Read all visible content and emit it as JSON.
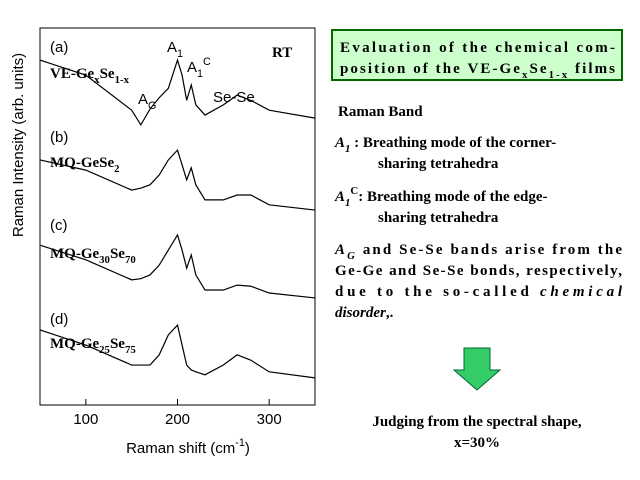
{
  "chart_data": {
    "type": "line",
    "ylabel": "Raman Intensity (arb. units)",
    "xlabel": [
      "Raman shift  (cm",
      {
        "sup": "-1"
      },
      ")"
    ],
    "xlim": [
      50,
      350
    ],
    "ylim": [
      0,
      100
    ],
    "xticks": [
      100,
      200,
      300
    ],
    "x": [
      50,
      100,
      150,
      160,
      170,
      180,
      190,
      200,
      205,
      210,
      215,
      220,
      230,
      250,
      265,
      280,
      300,
      350
    ],
    "series": [
      {
        "color": "#000000",
        "values": [
          91.5,
          87.5,
          78.2,
          74.3,
          78.5,
          81.5,
          84,
          91.5,
          87.5,
          80.8,
          84.9,
          79.6,
          76.9,
          79.6,
          82.2,
          80.8,
          78.2,
          76.1
        ]
      },
      {
        "color": "#000000",
        "values": [
          65.0,
          62.3,
          57.0,
          57.5,
          58.4,
          61.0,
          65.0,
          67.6,
          63.7,
          59.7,
          62.9,
          58.4,
          54.4,
          54.4,
          55.7,
          55.7,
          53.1,
          51.7
        ]
      },
      {
        "color": "#000000",
        "values": [
          42.4,
          38.5,
          33.2,
          33.5,
          34.5,
          37.1,
          41.1,
          45.1,
          41.1,
          36.3,
          39.8,
          34.5,
          30.5,
          30.5,
          31.8,
          31.5,
          29.7,
          28.4
        ]
      },
      {
        "color": "#000000",
        "values": [
          19.9,
          15.9,
          10.6,
          10.6,
          10.6,
          13.3,
          18.6,
          21.2,
          15.9,
          10.6,
          9.3,
          8.8,
          8.0,
          10.6,
          13.3,
          11.9,
          8.8,
          7.2
        ]
      }
    ],
    "annotations": [
      [
        "(a)"
      ],
      [
        "VE-Ge",
        {
          "sub": "x"
        },
        "Se",
        {
          "sub": "1-x"
        }
      ],
      [
        "A",
        {
          "sub": "G"
        }
      ],
      [
        "A",
        {
          "sub": "1"
        }
      ],
      [
        "A",
        {
          "sub": "1"
        },
        {
          "sup": "C"
        }
      ],
      [
        "Se-Se"
      ],
      [
        "RT"
      ],
      [
        "(b)"
      ],
      [
        "MQ-GeSe",
        {
          "sub": "2"
        }
      ],
      [
        "(c)"
      ],
      [
        "MQ-Ge",
        {
          "sub": "30"
        },
        "Se",
        {
          "sub": "70"
        }
      ],
      [
        "(d)"
      ],
      [
        "MQ-Ge",
        {
          "sub": "25"
        },
        "Se",
        {
          "sub": "75"
        }
      ]
    ]
  },
  "panel": {
    "heading": [
      [
        "Evaluation of the chemical com-"
      ],
      [
        "position of the VE-Ge",
        {
          "sub": "x"
        },
        "Se",
        {
          "sub": "1-x"
        },
        " films"
      ]
    ],
    "lines": [
      [
        "Raman Band"
      ],
      [
        {
          "em": "A"
        },
        {
          "sub": "1"
        },
        "  : Breathing mode of the corner-"
      ],
      [
        "sharing tetrahedra"
      ],
      [
        {
          "em": "A"
        },
        {
          "sub": "1"
        },
        {
          "sup": "C"
        },
        ": Breathing mode of the edge-"
      ],
      [
        "sharing tetrahedra"
      ],
      [
        {
          "em": "A"
        },
        {
          "sub": "G"
        },
        " and Se-Se bands arise from the"
      ],
      [
        "Ge-Ge and Se-Se bonds, respectively,"
      ],
      [
        "due to the so-called ",
        {
          "em": "chemical"
        }
      ],
      [
        {
          "em": "disorder"
        },
        ",."
      ]
    ],
    "conclusion": [
      [
        "Judging from the spectral shape,"
      ],
      [
        "x=30%"
      ]
    ]
  }
}
